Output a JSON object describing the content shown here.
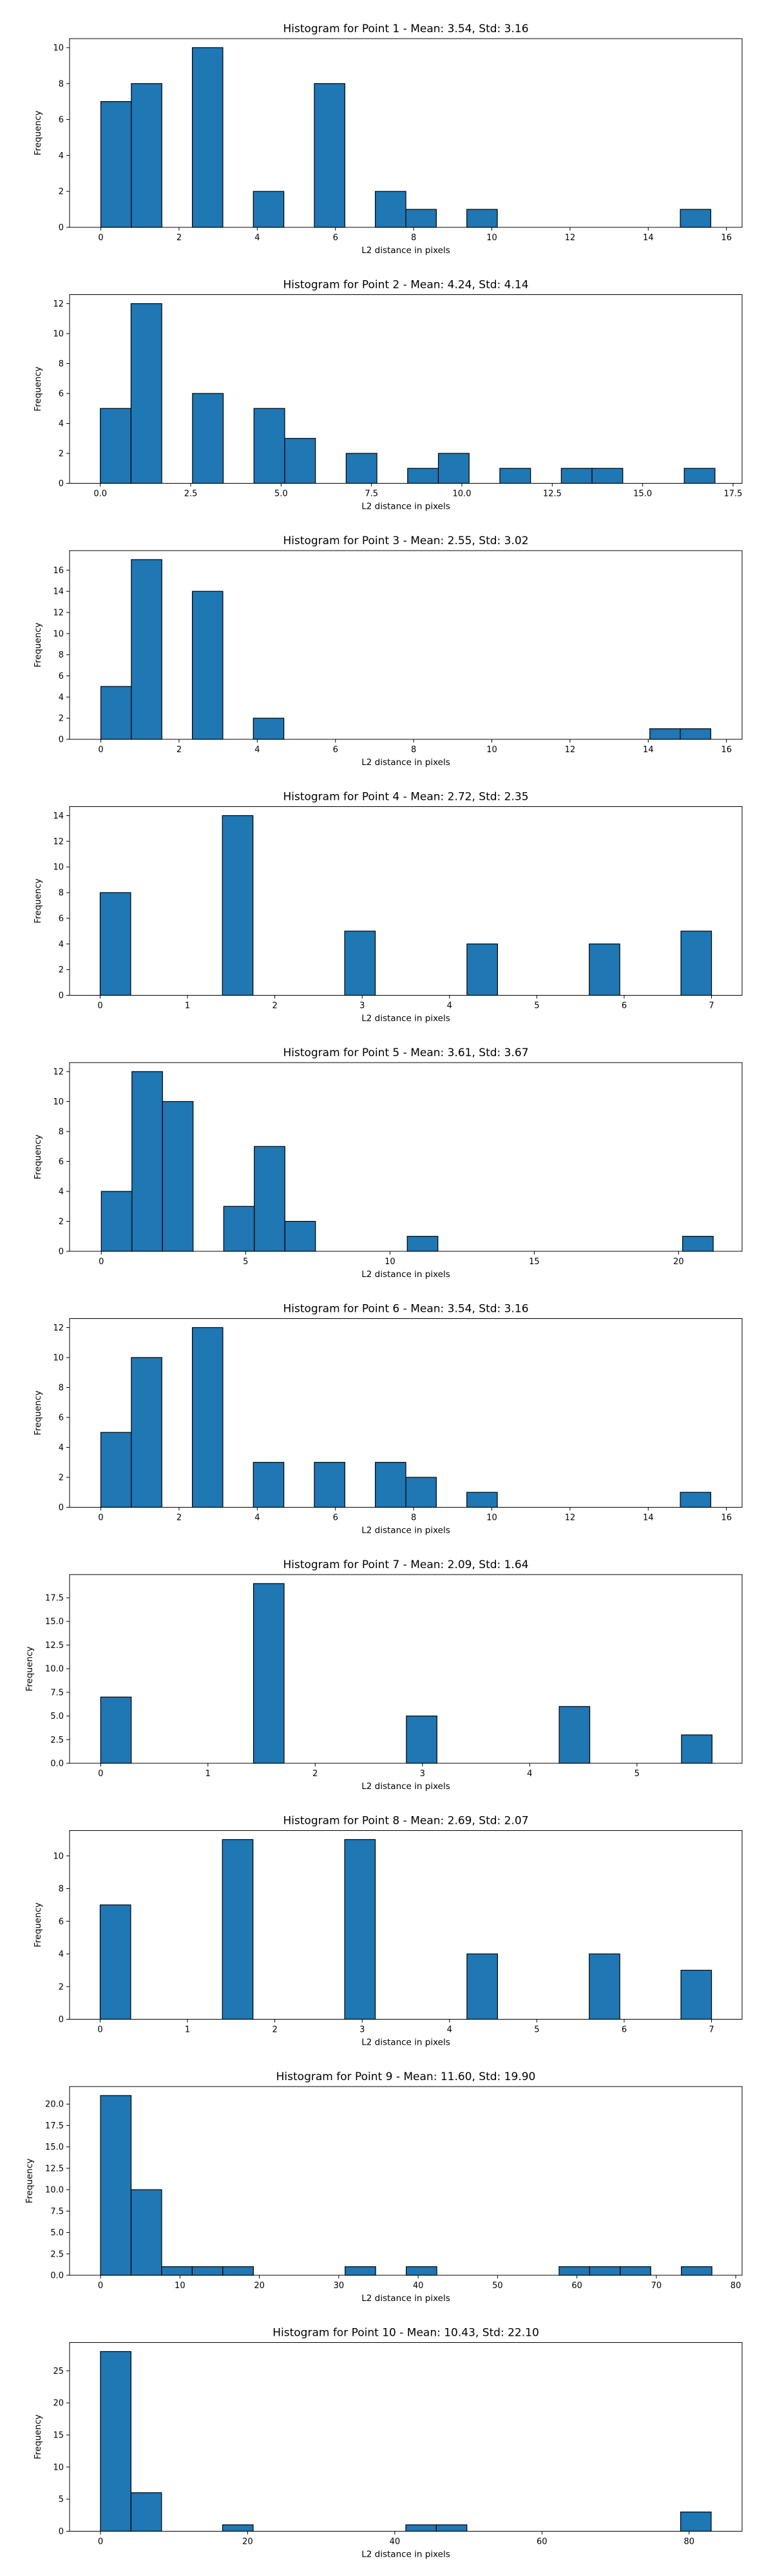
{
  "figure": {
    "bar_color": "#1f77b4",
    "edge_color": "#000000"
  },
  "chart_data": [
    {
      "type": "bar",
      "title": "Histogram for Point 1 - Mean: 3.54, Std: 3.16",
      "xlabel": "L2 distance in pixels",
      "ylabel": "Frequency",
      "xlim": [
        -0.8,
        16.4
      ],
      "ylim": [
        0,
        10.5
      ],
      "xticks": [
        0,
        2,
        4,
        6,
        8,
        10,
        12,
        14,
        16
      ],
      "yticks": [
        0,
        2,
        4,
        6,
        8,
        10
      ],
      "bin_width": 0.78,
      "bins": [
        {
          "x": 0,
          "value": 7
        },
        {
          "x": 0.78,
          "value": 8
        },
        {
          "x": 2.34,
          "value": 10
        },
        {
          "x": 3.9,
          "value": 2
        },
        {
          "x": 5.46,
          "value": 8
        },
        {
          "x": 7.02,
          "value": 2
        },
        {
          "x": 7.8,
          "value": 1
        },
        {
          "x": 9.36,
          "value": 1
        },
        {
          "x": 14.82,
          "value": 1
        }
      ]
    },
    {
      "type": "bar",
      "title": "Histogram for Point 2 - Mean: 4.24, Std: 4.14",
      "xlabel": "L2 distance in pixels",
      "ylabel": "Frequency",
      "xlim": [
        -0.85,
        17.75
      ],
      "ylim": [
        0,
        12.6
      ],
      "xticks": [
        0.0,
        2.5,
        5.0,
        7.5,
        10.0,
        12.5,
        15.0,
        17.5
      ],
      "xtick_labels": [
        "0.0",
        "2.5",
        "5.0",
        "7.5",
        "10.0",
        "12.5",
        "15.0",
        "17.5"
      ],
      "yticks": [
        0,
        2,
        4,
        6,
        8,
        10,
        12
      ],
      "bin_width": 0.85,
      "bins": [
        {
          "x": 0,
          "value": 5
        },
        {
          "x": 0.85,
          "value": 12
        },
        {
          "x": 2.55,
          "value": 6
        },
        {
          "x": 4.25,
          "value": 5
        },
        {
          "x": 5.1,
          "value": 3
        },
        {
          "x": 6.8,
          "value": 2
        },
        {
          "x": 8.5,
          "value": 1
        },
        {
          "x": 9.35,
          "value": 2
        },
        {
          "x": 11.05,
          "value": 1
        },
        {
          "x": 12.75,
          "value": 1
        },
        {
          "x": 13.6,
          "value": 1
        },
        {
          "x": 16.15,
          "value": 1
        }
      ]
    },
    {
      "type": "bar",
      "title": "Histogram for Point 3 - Mean: 2.55, Std: 3.02",
      "xlabel": "L2 distance in pixels",
      "ylabel": "Frequency",
      "xlim": [
        -0.8,
        16.4
      ],
      "ylim": [
        0,
        17.85
      ],
      "xticks": [
        0,
        2,
        4,
        6,
        8,
        10,
        12,
        14,
        16
      ],
      "yticks": [
        0,
        2,
        4,
        6,
        8,
        10,
        12,
        14,
        16
      ],
      "bin_width": 0.78,
      "bins": [
        {
          "x": 0,
          "value": 5
        },
        {
          "x": 0.78,
          "value": 17
        },
        {
          "x": 2.34,
          "value": 14
        },
        {
          "x": 3.9,
          "value": 2
        },
        {
          "x": 14.04,
          "value": 1
        },
        {
          "x": 14.82,
          "value": 1
        }
      ]
    },
    {
      "type": "bar",
      "title": "Histogram for Point 4 - Mean: 2.72, Std: 2.35",
      "xlabel": "L2 distance in pixels",
      "ylabel": "Frequency",
      "xlim": [
        -0.35,
        7.35
      ],
      "ylim": [
        0,
        14.7
      ],
      "xticks": [
        0,
        1,
        2,
        3,
        4,
        5,
        6,
        7
      ],
      "yticks": [
        0,
        2,
        4,
        6,
        8,
        10,
        12,
        14
      ],
      "bin_width": 0.35,
      "bins": [
        {
          "x": 0,
          "value": 8
        },
        {
          "x": 1.4,
          "value": 14
        },
        {
          "x": 2.8,
          "value": 5
        },
        {
          "x": 4.2,
          "value": 4
        },
        {
          "x": 5.6,
          "value": 4
        },
        {
          "x": 6.65,
          "value": 5
        }
      ]
    },
    {
      "type": "bar",
      "title": "Histogram for Point 5 - Mean: 3.61, Std: 3.67",
      "xlabel": "L2 distance in pixels",
      "ylabel": "Frequency",
      "xlim": [
        -1.1,
        22.2
      ],
      "ylim": [
        0,
        12.6
      ],
      "xticks": [
        0,
        5,
        10,
        15,
        20
      ],
      "yticks": [
        0,
        2,
        4,
        6,
        8,
        10,
        12
      ],
      "bin_width": 1.06,
      "bins": [
        {
          "x": 0,
          "value": 4
        },
        {
          "x": 1.06,
          "value": 12
        },
        {
          "x": 2.12,
          "value": 10
        },
        {
          "x": 4.24,
          "value": 3
        },
        {
          "x": 5.3,
          "value": 7
        },
        {
          "x": 6.36,
          "value": 2
        },
        {
          "x": 10.6,
          "value": 1
        },
        {
          "x": 20.14,
          "value": 1
        }
      ]
    },
    {
      "type": "bar",
      "title": "Histogram for Point 6 - Mean: 3.54, Std: 3.16",
      "xlabel": "L2 distance in pixels",
      "ylabel": "Frequency",
      "xlim": [
        -0.8,
        16.4
      ],
      "ylim": [
        0,
        12.6
      ],
      "xticks": [
        0,
        2,
        4,
        6,
        8,
        10,
        12,
        14,
        16
      ],
      "yticks": [
        0,
        2,
        4,
        6,
        8,
        10,
        12
      ],
      "bin_width": 0.78,
      "bins": [
        {
          "x": 0,
          "value": 5
        },
        {
          "x": 0.78,
          "value": 10
        },
        {
          "x": 2.34,
          "value": 12
        },
        {
          "x": 3.9,
          "value": 3
        },
        {
          "x": 5.46,
          "value": 3
        },
        {
          "x": 7.02,
          "value": 3
        },
        {
          "x": 7.8,
          "value": 2
        },
        {
          "x": 9.36,
          "value": 1
        },
        {
          "x": 14.82,
          "value": 1
        }
      ]
    },
    {
      "type": "bar",
      "title": "Histogram for Point 7 - Mean: 2.09, Std: 1.64",
      "xlabel": "L2 distance in pixels",
      "ylabel": "Frequency",
      "xlim": [
        -0.29,
        5.98
      ],
      "ylim": [
        0,
        19.95
      ],
      "xticks": [
        0,
        1,
        2,
        3,
        4,
        5
      ],
      "yticks": [
        0.0,
        2.5,
        5.0,
        7.5,
        10.0,
        12.5,
        15.0,
        17.5
      ],
      "ytick_labels": [
        "0.0",
        "2.5",
        "5.0",
        "7.5",
        "10.0",
        "12.5",
        "15.0",
        "17.5"
      ],
      "bin_width": 0.285,
      "bins": [
        {
          "x": 0,
          "value": 7
        },
        {
          "x": 1.425,
          "value": 19
        },
        {
          "x": 2.85,
          "value": 5
        },
        {
          "x": 4.275,
          "value": 6
        },
        {
          "x": 5.415,
          "value": 3
        }
      ]
    },
    {
      "type": "bar",
      "title": "Histogram for Point 8 - Mean: 2.69, Std: 2.07",
      "xlabel": "L2 distance in pixels",
      "ylabel": "Frequency",
      "xlim": [
        -0.35,
        7.35
      ],
      "ylim": [
        0,
        11.55
      ],
      "xticks": [
        0,
        1,
        2,
        3,
        4,
        5,
        6,
        7
      ],
      "yticks": [
        0,
        2,
        4,
        6,
        8,
        10
      ],
      "bin_width": 0.35,
      "bins": [
        {
          "x": 0,
          "value": 7
        },
        {
          "x": 1.4,
          "value": 11
        },
        {
          "x": 2.8,
          "value": 11
        },
        {
          "x": 4.2,
          "value": 4
        },
        {
          "x": 5.6,
          "value": 4
        },
        {
          "x": 6.65,
          "value": 3
        }
      ]
    },
    {
      "type": "bar",
      "title": "Histogram for Point 9 - Mean: 11.60, Std: 19.90",
      "xlabel": "L2 distance in pixels",
      "ylabel": "Frequency",
      "xlim": [
        -3.9,
        80.8
      ],
      "ylim": [
        0,
        22.05
      ],
      "xticks": [
        0,
        10,
        20,
        30,
        40,
        50,
        60,
        70,
        80
      ],
      "yticks": [
        0.0,
        2.5,
        5.0,
        7.5,
        10.0,
        12.5,
        15.0,
        17.5,
        20.0
      ],
      "ytick_labels": [
        "0.0",
        "2.5",
        "5.0",
        "7.5",
        "10.0",
        "12.5",
        "15.0",
        "17.5",
        "20.0"
      ],
      "bin_width": 3.85,
      "bins": [
        {
          "x": 0,
          "value": 21
        },
        {
          "x": 3.85,
          "value": 10
        },
        {
          "x": 7.7,
          "value": 1
        },
        {
          "x": 11.55,
          "value": 1
        },
        {
          "x": 15.4,
          "value": 1
        },
        {
          "x": 30.8,
          "value": 1
        },
        {
          "x": 38.5,
          "value": 1
        },
        {
          "x": 57.75,
          "value": 1
        },
        {
          "x": 61.6,
          "value": 1
        },
        {
          "x": 65.45,
          "value": 1
        },
        {
          "x": 73.15,
          "value": 1
        }
      ]
    },
    {
      "type": "bar",
      "title": "Histogram for Point 10 - Mean: 10.43, Std: 22.10",
      "xlabel": "L2 distance in pixels",
      "ylabel": "Frequency",
      "xlim": [
        -4.2,
        87.2
      ],
      "ylim": [
        0,
        29.4
      ],
      "xticks": [
        0,
        20,
        40,
        60,
        80
      ],
      "yticks": [
        0,
        5,
        10,
        15,
        20,
        25
      ],
      "bin_width": 4.15,
      "bins": [
        {
          "x": 0,
          "value": 28
        },
        {
          "x": 4.15,
          "value": 6
        },
        {
          "x": 16.6,
          "value": 1
        },
        {
          "x": 41.5,
          "value": 1
        },
        {
          "x": 45.65,
          "value": 1
        },
        {
          "x": 78.85,
          "value": 3
        }
      ]
    }
  ]
}
